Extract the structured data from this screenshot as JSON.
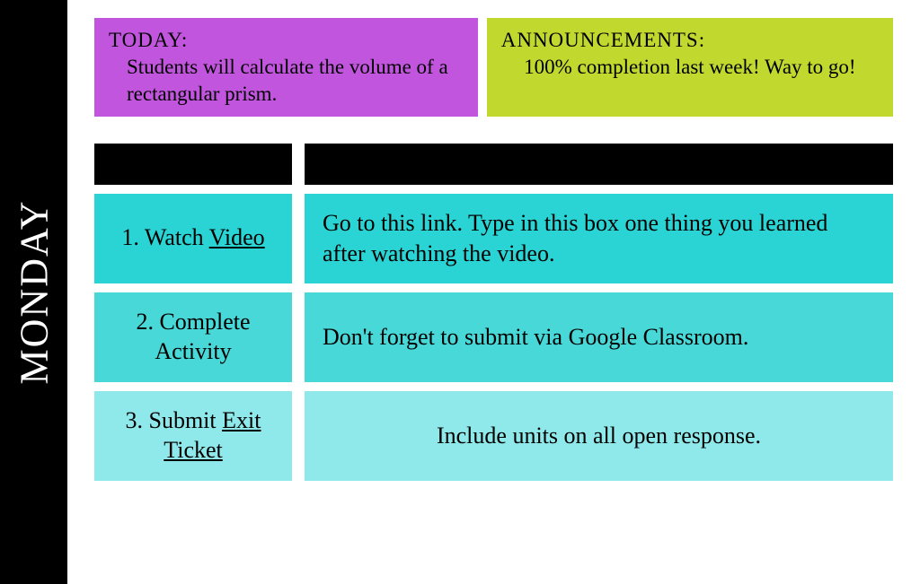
{
  "sidebar": {
    "day": "MONDAY"
  },
  "top": {
    "today": {
      "heading": "TODAY:",
      "body": "Students will calculate the volume of a rectangular prism."
    },
    "announcements": {
      "heading": "ANNOUNCEMENTS:",
      "body": "100% completion last week! Way to go!"
    }
  },
  "colors": {
    "today_bg": "#c155dd",
    "announce_bg": "#c1d82f",
    "task_row_bg": [
      "#2bd4d4",
      "#48d8d8",
      "#8fe8ea"
    ],
    "black": "#000000",
    "text": "#000000"
  },
  "tasks": [
    {
      "num": "1.",
      "label_pre": "Watch ",
      "link": "Video",
      "label_post": "",
      "instruction": "Go to this link. Type in this box one thing you learned after watching the video.",
      "instruction_align": "left"
    },
    {
      "num": "2.",
      "label_pre": "Complete Activity",
      "link": "",
      "label_post": "",
      "instruction": "Don't forget to submit via Google Classroom.",
      "instruction_align": "left"
    },
    {
      "num": "3.",
      "label_pre": "Submit ",
      "link": "Exit Ticket",
      "label_post": "",
      "instruction": "Include units on all open response.",
      "instruction_align": "center"
    }
  ]
}
